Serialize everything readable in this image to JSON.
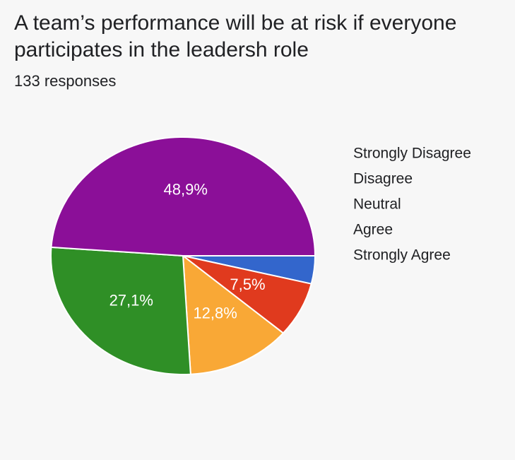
{
  "chart_data": {
    "type": "pie",
    "title": "A team’s performance will be at risk if everyone participates in the leadersh role",
    "subtitle": "133 responses",
    "categories": [
      "Strongly Disagree",
      "Disagree",
      "Neutral",
      "Agree",
      "Strongly Agree"
    ],
    "values": [
      3.8,
      7.5,
      12.8,
      27.1,
      48.9
    ],
    "value_labels": [
      null,
      "7,5%",
      "12,8%",
      "27,1%",
      "48,9%"
    ],
    "colors": [
      "#3366cc",
      "#e03a1e",
      "#f9a836",
      "#2f8f26",
      "#8b0f98"
    ],
    "legend": "right"
  }
}
